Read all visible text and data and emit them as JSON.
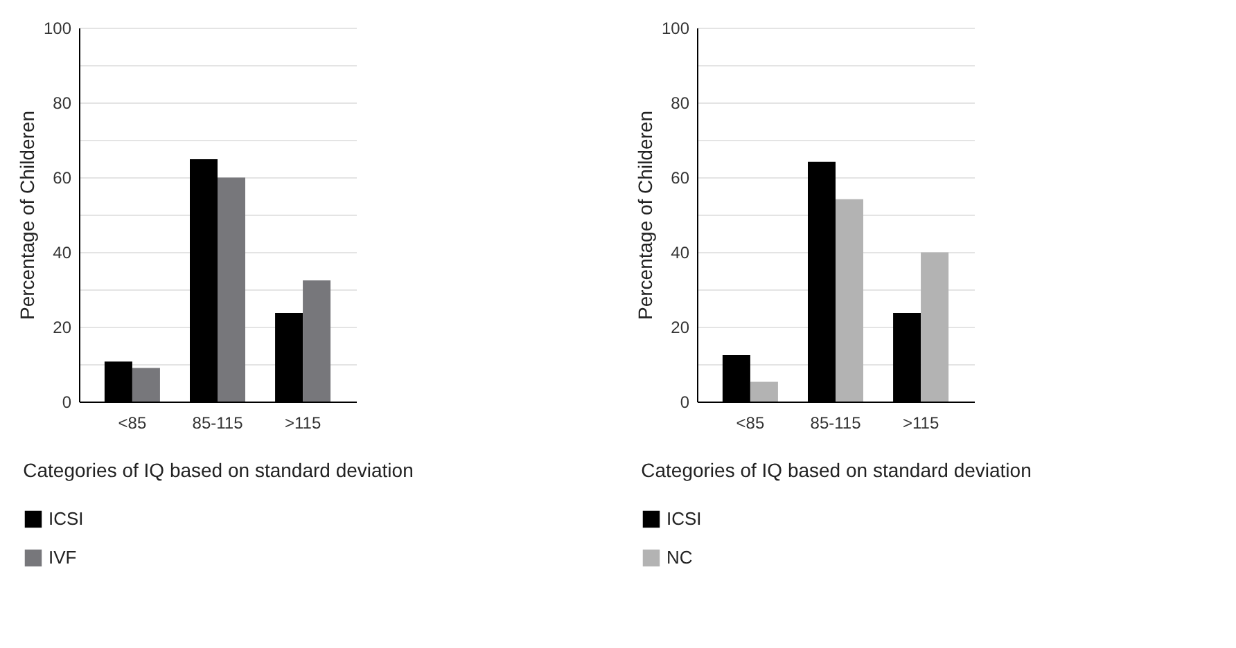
{
  "chart_data": [
    {
      "type": "bar",
      "categories": [
        "<85",
        "85-115",
        ">115"
      ],
      "xlabel": "Categories of IQ based on standard deviation",
      "ylabel": "Percentage of Childeren",
      "series": [
        {
          "name": "ICSI",
          "color": "#000000",
          "values": [
            10.7,
            64.8,
            23.7
          ]
        },
        {
          "name": "IVF",
          "color": "#77777b",
          "values": [
            9.0,
            59.9,
            32.4
          ]
        }
      ],
      "ylim": [
        0,
        100
      ],
      "yticks": [
        0,
        {
          "value": 10,
          "label": null
        },
        20,
        {
          "value": 30,
          "label": null
        },
        40,
        {
          "value": 50,
          "label": null
        },
        60,
        {
          "value": 70,
          "label": null
        },
        80,
        {
          "value": 90,
          "label": null
        },
        100
      ],
      "grid": "y",
      "legend": "bottom left"
    },
    {
      "type": "bar",
      "categories": [
        "<85",
        "85-115",
        ">115"
      ],
      "xlabel": "Categories of IQ based on standard deviation",
      "ylabel": "Percentage of Childeren",
      "series": [
        {
          "name": "ICSI",
          "color": "#000000",
          "values": [
            12.4,
            64.1,
            23.7
          ]
        },
        {
          "name": "NC",
          "color": "#b3b3b3",
          "values": [
            5.3,
            54.1,
            39.9
          ]
        }
      ],
      "ylim": [
        0,
        100
      ],
      "yticks": [
        0,
        {
          "value": 10,
          "label": null
        },
        20,
        {
          "value": 30,
          "label": null
        },
        40,
        {
          "value": 50,
          "label": null
        },
        60,
        {
          "value": 70,
          "label": null
        },
        80,
        {
          "value": 90,
          "label": null
        },
        100
      ],
      "grid": "y",
      "legend": "bottom left"
    }
  ]
}
